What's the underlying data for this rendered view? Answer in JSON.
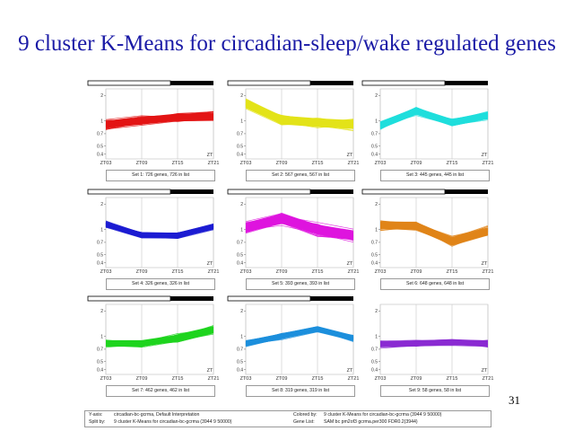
{
  "title": "9 cluster K-Means for circadian-sleep/wake regulated genes",
  "page_number": "31",
  "footer": {
    "y_axis_label": "Y-axis:",
    "y_axis_value": "circadian-bc-gcrma, Default Interpretation",
    "split_label": "Split by:",
    "split_value": "9 cluster K-Means for circadian-bc-gcrma (3944 9 50000)",
    "colored_label": "Colored by:",
    "colored_value": "9 cluster K-Means for circadian-bc-gcrma (3944 9 50000)",
    "gene_list_label": "Gene List:",
    "gene_list_value": "SAM bc pm2of3 gcrma.per300 FDR0.2(3944)"
  },
  "chart_data": [
    {
      "type": "line",
      "caption": "Set 1: 726 genes, 726 in list",
      "color": "#e31414",
      "x": [
        "ZT03",
        "ZT09",
        "ZT15",
        "ZT21"
      ],
      "y_ticks": [
        "2",
        "1",
        "0.7",
        "0.5",
        "0.4"
      ],
      "ylim": [
        0.35,
        2.4
      ],
      "zt_label": "ZT",
      "day_night_bar": true,
      "center": [
        0.9,
        1.0,
        1.1,
        1.12
      ],
      "line_count": 36,
      "spread": 0.13
    },
    {
      "type": "line",
      "caption": "Set 2: 567 genes, 567 in list",
      "color": "#e3e318",
      "x": [
        "ZT03",
        "ZT09",
        "ZT15",
        "ZT21"
      ],
      "y_ticks": [
        "2",
        "1",
        "0.7",
        "0.5",
        "0.4"
      ],
      "ylim": [
        0.35,
        2.4
      ],
      "zt_label": "ZT",
      "day_night_bar": true,
      "center": [
        1.6,
        1.02,
        0.95,
        0.9
      ],
      "line_count": 32,
      "spread": 0.16
    },
    {
      "type": "line",
      "caption": "Set 3: 445 genes, 445 in list",
      "color": "#1fdedc",
      "x": [
        "ZT03",
        "ZT09",
        "ZT15",
        "ZT21"
      ],
      "y_ticks": [
        "2",
        "1",
        "0.7",
        "0.5",
        "0.4"
      ],
      "ylim": [
        0.35,
        2.4
      ],
      "zt_label": "ZT",
      "day_night_bar": true,
      "center": [
        0.88,
        1.3,
        0.95,
        1.15
      ],
      "line_count": 32,
      "spread": 0.12
    },
    {
      "type": "line",
      "caption": "Set 4: 326 genes, 326 in list",
      "color": "#1c1cd2",
      "x": [
        "ZT03",
        "ZT09",
        "ZT15",
        "ZT21"
      ],
      "y_ticks": [
        "2",
        "1",
        "0.7",
        "0.5",
        "0.4"
      ],
      "ylim": [
        0.35,
        2.4
      ],
      "zt_label": "ZT",
      "day_night_bar": true,
      "center": [
        1.15,
        0.85,
        0.85,
        1.08
      ],
      "line_count": 30,
      "spread": 0.09
    },
    {
      "type": "line",
      "caption": "Set 5: 393 genes, 393 in list",
      "color": "#de14de",
      "x": [
        "ZT03",
        "ZT09",
        "ZT15",
        "ZT21"
      ],
      "y_ticks": [
        "2",
        "1",
        "0.7",
        "0.5",
        "0.4"
      ],
      "ylim": [
        0.35,
        2.4
      ],
      "zt_label": "ZT",
      "day_night_bar": true,
      "center": [
        1.05,
        1.35,
        1.0,
        0.85
      ],
      "line_count": 34,
      "spread": 0.18
    },
    {
      "type": "line",
      "caption": "Set 6: 648 genes, 648 in list",
      "color": "#e08418",
      "x": [
        "ZT03",
        "ZT09",
        "ZT15",
        "ZT21"
      ],
      "y_ticks": [
        "2",
        "1",
        "0.7",
        "0.5",
        "0.4"
      ],
      "ylim": [
        0.35,
        2.4
      ],
      "zt_label": "ZT",
      "day_night_bar": true,
      "center": [
        1.12,
        1.1,
        0.72,
        0.95
      ],
      "line_count": 34,
      "spread": 0.14
    },
    {
      "type": "line",
      "caption": "Set 7: 462 genes, 462 in list",
      "color": "#1ed41e",
      "x": [
        "ZT03",
        "ZT09",
        "ZT15",
        "ZT21"
      ],
      "y_ticks": [
        "2",
        "1",
        "0.7",
        "0.5",
        "0.4"
      ],
      "ylim": [
        0.35,
        2.4
      ],
      "zt_label": "ZT",
      "day_night_bar": true,
      "center": [
        0.82,
        0.82,
        0.95,
        1.2
      ],
      "line_count": 32,
      "spread": 0.11
    },
    {
      "type": "line",
      "caption": "Set 8: 319 genes, 319 in list",
      "color": "#1c8fdc",
      "x": [
        "ZT03",
        "ZT09",
        "ZT15",
        "ZT21"
      ],
      "y_ticks": [
        "2",
        "1",
        "0.7",
        "0.5",
        "0.4"
      ],
      "ylim": [
        0.35,
        2.4
      ],
      "zt_label": "ZT",
      "day_night_bar": true,
      "center": [
        0.82,
        1.0,
        1.22,
        0.95
      ],
      "line_count": 30,
      "spread": 0.09
    },
    {
      "type": "line",
      "caption": "Set 9: 58 genes, 58 in list",
      "color": "#8a2ad2",
      "x": [
        "ZT03",
        "ZT09",
        "ZT15",
        "ZT21"
      ],
      "y_ticks": [
        "2",
        "1",
        "0.7",
        "0.5",
        "0.4"
      ],
      "ylim": [
        0.35,
        2.4
      ],
      "zt_label": "ZT",
      "day_night_bar": false,
      "center": [
        0.8,
        0.82,
        0.85,
        0.82
      ],
      "line_count": 30,
      "spread": 0.1
    }
  ]
}
